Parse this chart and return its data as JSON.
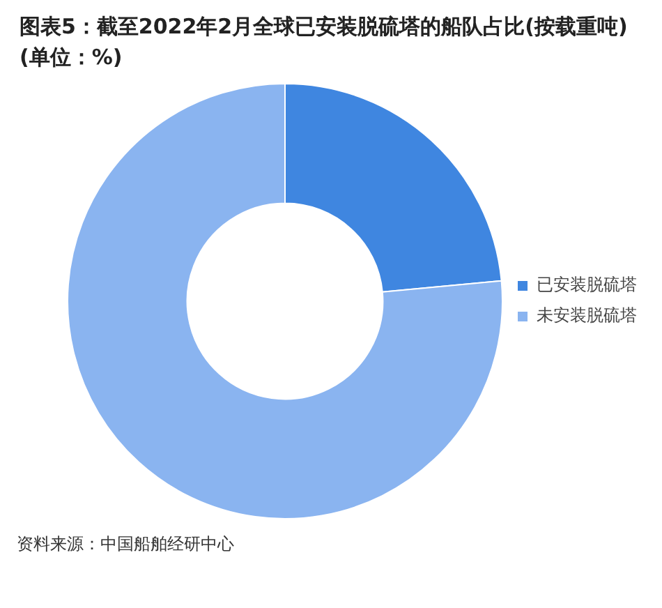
{
  "chart_data": {
    "type": "donut",
    "title": "图表5：截至2022年2月全球已安装脱硫塔的船队占比(按载重吨)(单位：%)",
    "categories": [
      "已安装脱硫塔",
      "未安装脱硫塔"
    ],
    "values": [
      23.5,
      76.5
    ],
    "colors": [
      "#3f86e0",
      "#8ab4f0"
    ],
    "legend": "right",
    "annotations": [
      "资料来源：中国船舶经研中心"
    ]
  }
}
